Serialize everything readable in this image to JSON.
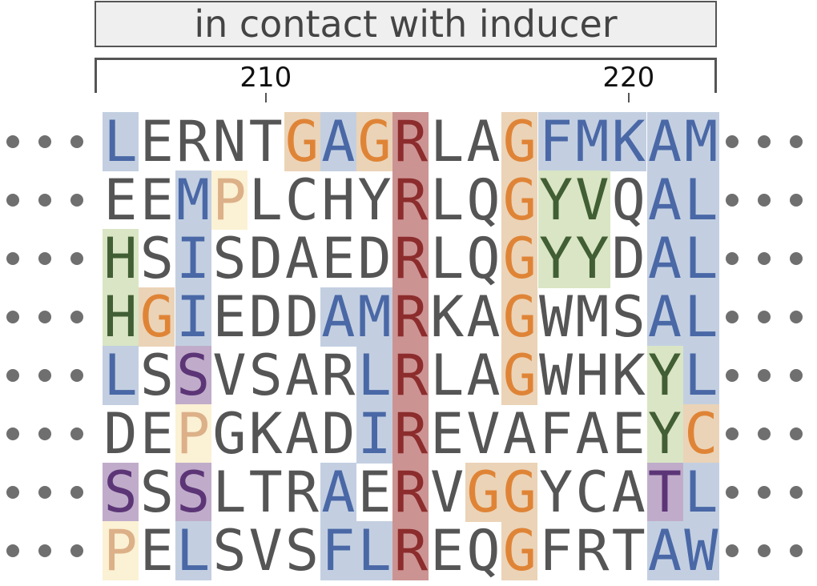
{
  "title": "in contact with inducer",
  "positions": [
    {
      "label": "210",
      "column": 4
    },
    {
      "label": "220",
      "column": 14
    }
  ],
  "colors": {
    "hydrophobic": {
      "bg": "#c3cfe1",
      "fg": "#4a68a6"
    },
    "glycine": {
      "bg": "#ebd3b7",
      "fg": "#df8436"
    },
    "arginine": {
      "bg": "#cc9393",
      "fg": "#8c2c2c"
    },
    "aromatic": {
      "bg": "#d9e5c4",
      "fg": "#415e34"
    },
    "proline": {
      "bg": "#fbf1d4",
      "fg": "#dcb088"
    },
    "polar": {
      "bg": "#c0acca",
      "fg": "#5c3577"
    },
    "cysteine": {
      "bg": "#ebd3b7",
      "fg": "#df8436"
    },
    "plain": {
      "fg": "#555555"
    }
  },
  "sequences": [
    "LERNTGAGRLAGFMKAM",
    "EEMPLCHYRLQGYVQAL",
    "HSISDAEDRLQGYYDAL",
    "HGIEDDAMRKAGWMSAL",
    "LSSVSARLRLAGWHKYL",
    "DEPGKADIREVAFAEYC",
    "SSSLTRAERVGGYCATL",
    "PELSVSFLREQGFRTAW"
  ],
  "highlights": [
    "h....ghgr..ghhhhh",
    "..hp....r..gaa.hh",
    "a.h.....r..gaa.hh",
    "agh...hhr..g...hh",
    "h.p....hr..g...ah",
    "..p....hr......ac",
    "p.p...h.r.gg...ph",
    "y.h...hhr..g...hh"
  ]
}
